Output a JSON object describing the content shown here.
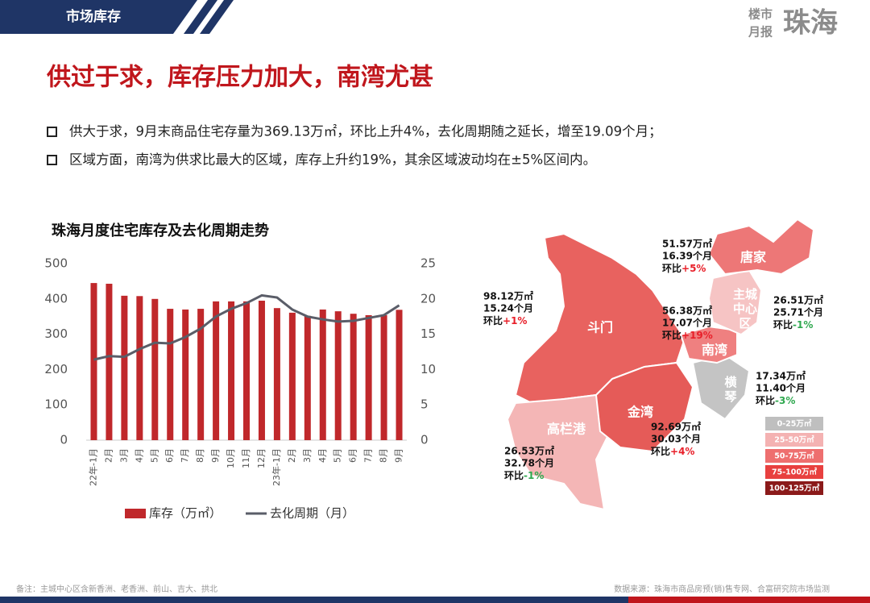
{
  "header": {
    "section": "市场库存",
    "logo_small_1": "楼市",
    "logo_small_2": "月报",
    "logo_big": "珠海"
  },
  "title": "供过于求，库存压力加大，南湾尤甚",
  "bullets": [
    "供大于求，9月末商品住宅存量为369.13万㎡，环比上升4%，去化周期随之延长，增至19.09个月；",
    "区域方面，南湾为供求比最大的区域，库存上升约19%，其余区域波动均在±5%区间内。"
  ],
  "chart_data": {
    "type": "bar_line",
    "title": "珠海月度住宅库存及去化周期走势",
    "categories": [
      "22年-1月",
      "2月",
      "3月",
      "4月",
      "5月",
      "6月",
      "7月",
      "8月",
      "9月",
      "10月",
      "11月",
      "12月",
      "23年-1月",
      "2月",
      "3月",
      "4月",
      "5月",
      "6月",
      "7月",
      "8月",
      "9月"
    ],
    "series": [
      {
        "name": "库存（万㎡）",
        "type": "bar",
        "color": "#c0282b",
        "values": [
          445,
          443,
          409,
          408,
          400,
          372,
          370,
          372,
          393,
          393,
          393,
          395,
          374,
          361,
          352,
          370,
          365,
          358,
          354,
          354,
          369.13
        ]
      },
      {
        "name": "去化周期（月）",
        "type": "line",
        "axis": "y2",
        "color": "#5a5d68",
        "values": [
          11.4,
          11.9,
          11.8,
          12.9,
          13.8,
          13.7,
          14.6,
          15.8,
          17.5,
          18.6,
          19.4,
          20.5,
          20.2,
          18.5,
          17.5,
          17.1,
          16.8,
          16.9,
          17.3,
          17.7,
          19.09
        ]
      }
    ],
    "ylim": [
      0,
      500
    ],
    "yticks": [
      0,
      100,
      200,
      300,
      400,
      500
    ],
    "y2lim": [
      0,
      25
    ],
    "y2ticks": [
      0,
      5,
      10,
      15,
      20,
      25
    ],
    "grid": false,
    "legend": "bottom"
  },
  "map": {
    "regions": [
      {
        "name": "斗门",
        "color": "#e8625f",
        "stats": [
          "98.12万㎡",
          "15.24个月"
        ],
        "change_label": "环比",
        "change": "+1%",
        "change_color": "#e8202a"
      },
      {
        "name": "高栏港",
        "color": "#f4b6b6",
        "stats": [
          "26.53万㎡",
          "32.78个月"
        ],
        "change_label": "环比",
        "change": "-1%",
        "change_color": "#2fa84f"
      },
      {
        "name": "金湾",
        "color": "#e55b58",
        "stats": [
          "92.69万㎡",
          "30.03个月"
        ],
        "change_label": "环比",
        "change": "+4%",
        "change_color": "#e8202a"
      },
      {
        "name": "横琴",
        "color": "#c4c4c4",
        "stats": [
          "17.34万㎡",
          "11.40个月"
        ],
        "change_label": "环比",
        "change": "-3%",
        "change_color": "#2fa84f"
      },
      {
        "name": "南湾",
        "color": "#ef8080",
        "stats": [
          "56.38万㎡",
          "17.07个月"
        ],
        "change_label": "环比",
        "change": "+19%",
        "change_color": "#e8202a"
      },
      {
        "name": "主城中心区",
        "color": "#f6c4c4",
        "stats": [
          "26.51万㎡",
          "25.71个月"
        ],
        "change_label": "环比",
        "change": "-1%",
        "change_color": "#2fa84f"
      },
      {
        "name": "唐家",
        "color": "#ed7777",
        "stats": [
          "51.57万㎡",
          "16.39个月"
        ],
        "change_label": "环比",
        "change": "+5%",
        "change_color": "#e8202a"
      }
    ],
    "legend": [
      {
        "label": "0-25万㎡",
        "color": "#bfbfbf"
      },
      {
        "label": "25-50万㎡",
        "color": "#f4b2b2"
      },
      {
        "label": "50-75万㎡",
        "color": "#ee6f6f"
      },
      {
        "label": "75-100万㎡",
        "color": "#e8403f"
      },
      {
        "label": "100-125万㎡",
        "color": "#8b1a1a"
      }
    ]
  },
  "footer": {
    "note": "备注：主城中心区含新香洲、老香洲、前山、吉大、拱北",
    "source": "数据来源：珠海市商品房预(销)售专网、合富研究院市场监测"
  }
}
